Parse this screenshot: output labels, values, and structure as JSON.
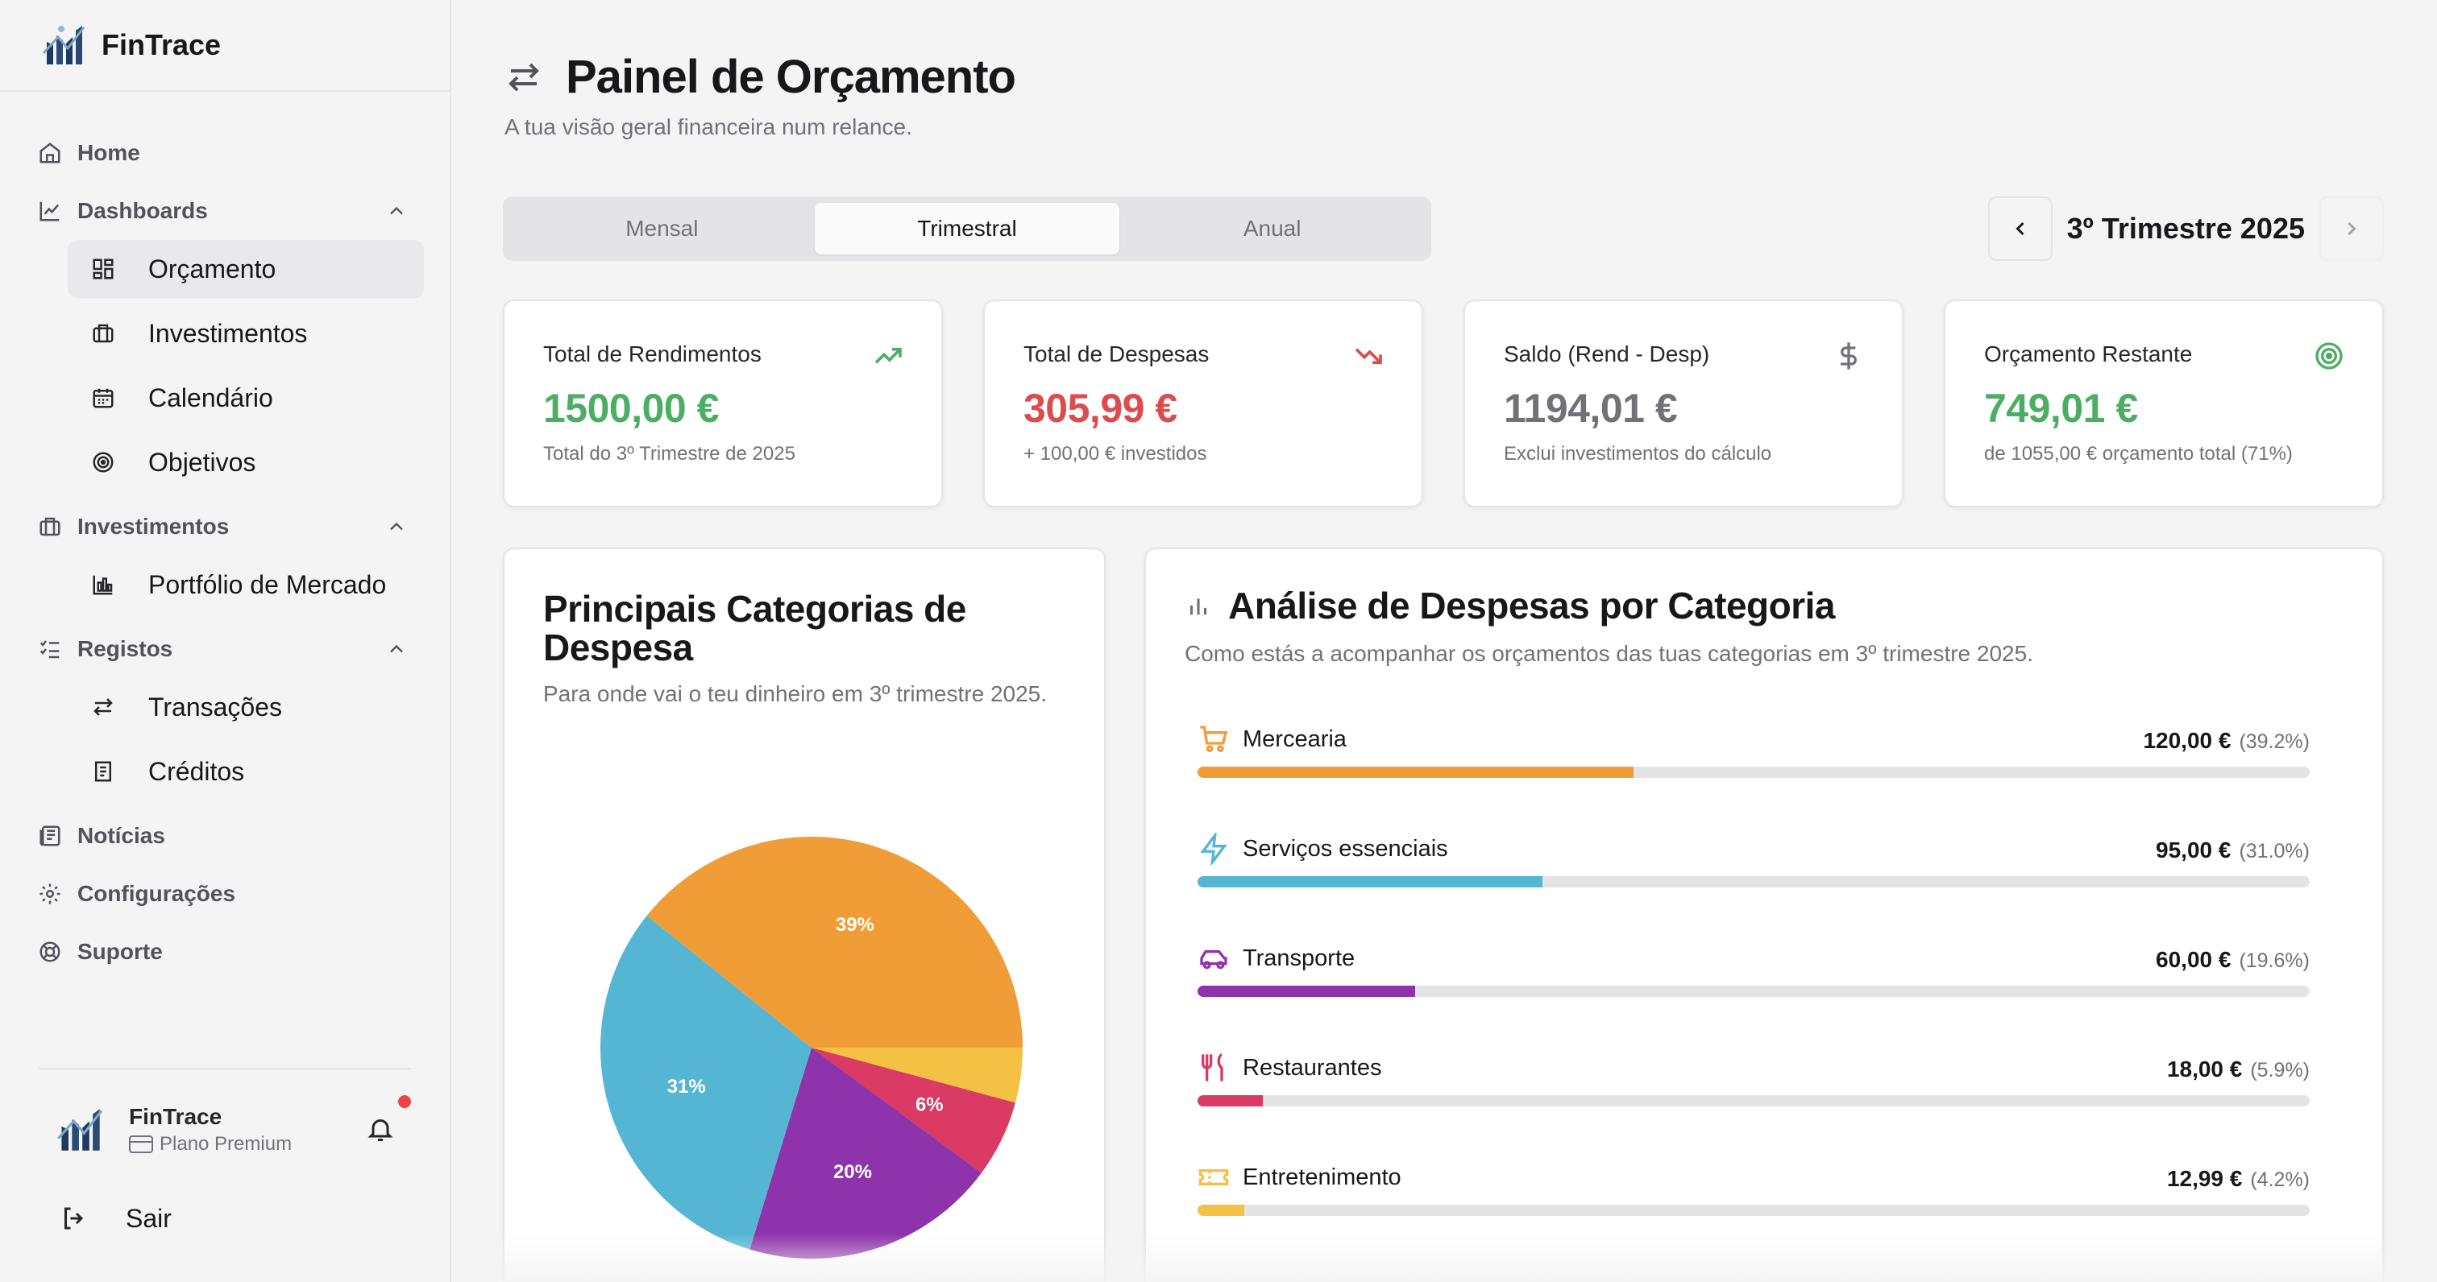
{
  "app": {
    "name": "FinTrace"
  },
  "sidebar": {
    "home": "Home",
    "dashboards": "Dashboards",
    "dashboard_items": [
      "Orçamento",
      "Investimentos",
      "Calendário",
      "Objetivos"
    ],
    "investimentos": "Investimentos",
    "investimentos_items": [
      "Portfólio de Mercado"
    ],
    "registos": "Registos",
    "registos_items": [
      "Transações",
      "Créditos"
    ],
    "noticias": "Notícias",
    "configuracoes": "Configurações",
    "suporte": "Suporte",
    "user": {
      "name": "FinTrace",
      "plan": "Plano Premium"
    },
    "logout": "Sair"
  },
  "header": {
    "title": "Painel de Orçamento",
    "subtitle": "A tua visão geral financeira num relance."
  },
  "period_tabs": [
    "Mensal",
    "Trimestral",
    "Anual"
  ],
  "active_period_tab": "Trimestral",
  "period_nav": {
    "label": "3º Trimestre 2025"
  },
  "kpis": [
    {
      "label": "Total de Rendimentos",
      "value": "1500,00 €",
      "foot": "Total do 3º Trimestre de 2025",
      "color": "#4cae63",
      "icon": "trending-up-icon"
    },
    {
      "label": "Total de Despesas",
      "value": "305,99 €",
      "foot": "+ 100,00 € investidos",
      "color": "#dc4c4c",
      "icon": "trending-down-icon"
    },
    {
      "label": "Saldo (Rend - Desp)",
      "value": "1194,01 €",
      "foot": "Exclui investimentos do cálculo",
      "color": "#71717a",
      "icon": "dollar-icon"
    },
    {
      "label": "Orçamento Restante",
      "value": "749,01 €",
      "foot": "de 1055,00 € orçamento total (71%)",
      "color": "#4cae63",
      "icon": "target-icon"
    }
  ],
  "top_categories": {
    "title": "Principais Categorias de Despesa",
    "desc": "Para onde vai o teu dinheiro em 3º trimestre 2025."
  },
  "chart_data": {
    "type": "pie",
    "categories": [
      "Mercearia",
      "Serviços essenciais",
      "Transporte",
      "Restaurantes",
      "Entretenimento"
    ],
    "values": [
      39.2,
      31.0,
      19.6,
      5.9,
      4.2
    ],
    "slice_labels": [
      "39%",
      "31%",
      "20%",
      "6%",
      ""
    ],
    "colors": [
      "#f09d38",
      "#55b6d3",
      "#8e33ab",
      "#da3a63",
      "#f5c144"
    ]
  },
  "analysis": {
    "title": "Análise de Despesas por Categoria",
    "desc": "Como estás a acompanhar os orçamentos das tuas categorias em 3º trimestre 2025.",
    "items": [
      {
        "name": "Mercearia",
        "amount": "120,00 €",
        "pct": "(39.2%)",
        "fraction": 0.392,
        "color": "#f09d38",
        "icon": "cart-icon"
      },
      {
        "name": "Serviços essenciais",
        "amount": "95,00 €",
        "pct": "(31.0%)",
        "fraction": 0.31,
        "color": "#55b6d3",
        "icon": "lightning-icon"
      },
      {
        "name": "Transporte",
        "amount": "60,00 €",
        "pct": "(19.6%)",
        "fraction": 0.196,
        "color": "#8e33ab",
        "icon": "car-icon"
      },
      {
        "name": "Restaurantes",
        "amount": "18,00 €",
        "pct": "(5.9%)",
        "fraction": 0.059,
        "color": "#da3a63",
        "icon": "utensils-icon"
      },
      {
        "name": "Entretenimento",
        "amount": "12,99 €",
        "pct": "(4.2%)",
        "fraction": 0.042,
        "color": "#f5c144",
        "icon": "ticket-icon"
      }
    ]
  }
}
